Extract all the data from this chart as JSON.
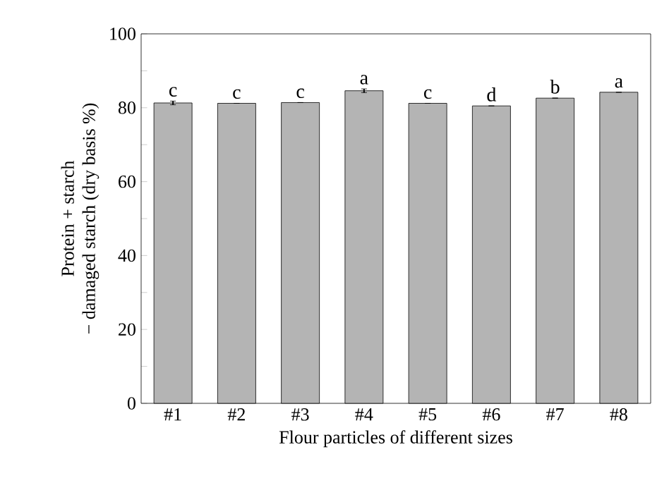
{
  "chart_data": {
    "type": "bar",
    "xlabel": "Flour particles of different sizes",
    "ylabel": "Protein + starch\n− damaged starch (dry basis %)",
    "categories": [
      "#1",
      "#2",
      "#3",
      "#4",
      "#5",
      "#6",
      "#7",
      "#8"
    ],
    "values": [
      81.3,
      81.2,
      81.4,
      84.6,
      81.2,
      80.5,
      82.6,
      84.2
    ],
    "errors": [
      0.5,
      null,
      null,
      0.5,
      null,
      null,
      null,
      null
    ],
    "color": "#b4b4b4",
    "ylim": [
      0,
      100
    ],
    "yticks": [
      0,
      {
        "value": 10,
        "label": null
      },
      20,
      {
        "value": 30,
        "label": null
      },
      40,
      {
        "value": 50,
        "label": null
      },
      60,
      {
        "value": 70,
        "label": null
      },
      80,
      {
        "value": 90,
        "label": null
      },
      100
    ],
    "annotations": [
      {
        "text": "c",
        "x": "#1",
        "y": 81.3
      },
      {
        "text": "c",
        "x": "#2",
        "y": 81.2
      },
      {
        "text": "c",
        "x": "#3",
        "y": 81.4
      },
      {
        "text": "a",
        "x": "#4",
        "y": 84.6
      },
      {
        "text": "c",
        "x": "#5",
        "y": 81.2
      },
      {
        "text": "d",
        "x": "#6",
        "y": 80.5
      },
      {
        "text": "b",
        "x": "#7",
        "y": 82.6
      },
      {
        "text": "a",
        "x": "#8",
        "y": 84.2
      }
    ]
  }
}
